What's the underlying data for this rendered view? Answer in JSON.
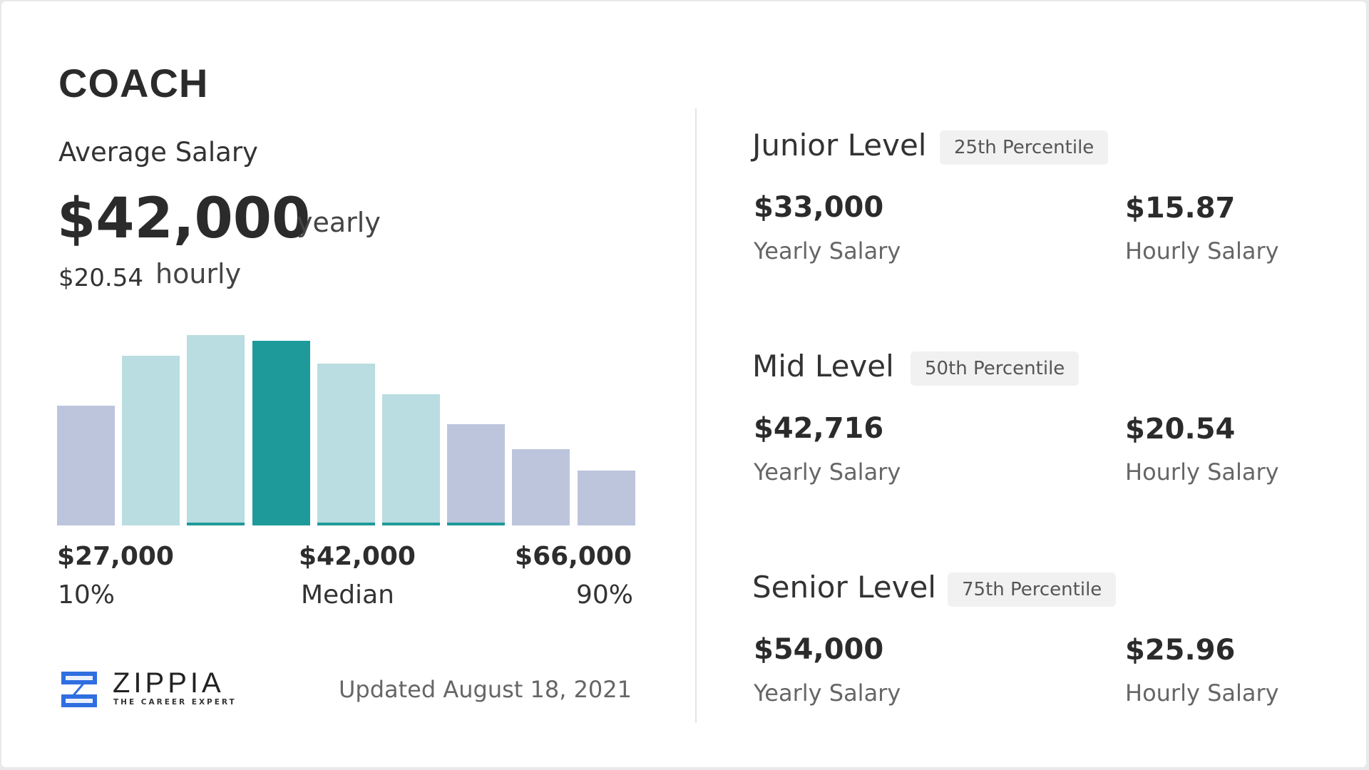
{
  "header": {
    "title": "COACH",
    "subtitle": "Average Salary"
  },
  "average": {
    "yearly_value": "$42,000",
    "yearly_label": "yearly",
    "hourly_value": "$20.54",
    "hourly_label": "hourly"
  },
  "chart_data": {
    "type": "bar",
    "values": [
      63,
      89,
      100,
      97,
      85,
      69,
      53,
      40,
      29
    ],
    "highlight_index": 3,
    "colors": {
      "outer": "#bcc5dc",
      "inner": "#b9dde0",
      "median": "#1f9a9a"
    },
    "tick_labels": [
      {
        "value": "$27,000",
        "pct": "10%"
      },
      {
        "value": "$42,000",
        "pct": "Median"
      },
      {
        "value": "$66,000",
        "pct": "90%"
      }
    ]
  },
  "footer": {
    "logo": "ZIPPIA",
    "logo_tagline": "THE CAREER EXPERT",
    "updated": "Updated August 18, 2021"
  },
  "levels": [
    {
      "name": "Junior Level",
      "badge": "25th Percentile",
      "yearly": "$33,000",
      "yearly_label": "Yearly Salary",
      "hourly": "$15.87",
      "hourly_label": "Hourly Salary"
    },
    {
      "name": "Mid Level",
      "badge": "50th Percentile",
      "yearly": "$42,716",
      "yearly_label": "Yearly Salary",
      "hourly": "$20.54",
      "hourly_label": "Hourly Salary"
    },
    {
      "name": "Senior Level",
      "badge": "75th Percentile",
      "yearly": "$54,000",
      "yearly_label": "Yearly Salary",
      "hourly": "$25.96",
      "hourly_label": "Hourly Salary"
    }
  ]
}
